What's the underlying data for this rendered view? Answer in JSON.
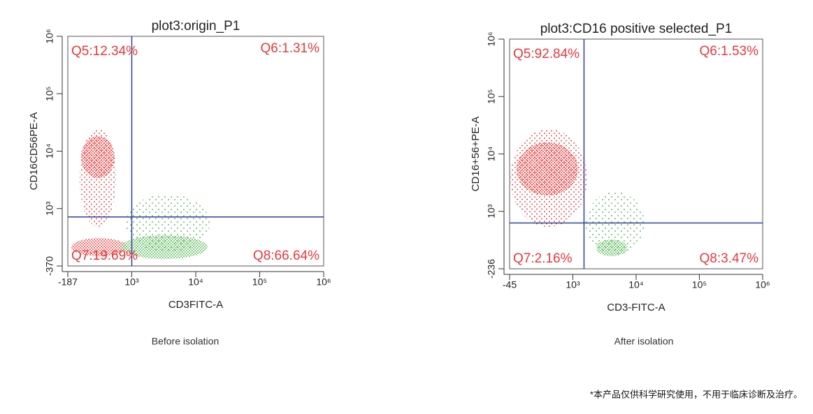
{
  "chart_data": [
    {
      "type": "scatter",
      "title": "plot3:origin_P1",
      "xlabel": "CD3FITC-A",
      "ylabel": "CD16CD56PE-A",
      "xscale": "biexponential",
      "yscale": "biexponential",
      "xlim": [
        -187,
        1000000
      ],
      "ylim": [
        -370,
        1000000
      ],
      "xticks": [
        -187,
        {
          "value": 1000,
          "label": "10³"
        },
        {
          "value": 10000,
          "label": "10⁴"
        },
        {
          "value": 100000,
          "label": "10⁵"
        },
        {
          "value": 1000000,
          "label": "10⁶"
        }
      ],
      "yticks": [
        -370,
        {
          "value": 1000,
          "label": "10³"
        },
        {
          "value": 10000,
          "label": "10⁴"
        },
        {
          "value": 100000,
          "label": "10⁵"
        },
        {
          "value": 1000000,
          "label": "10⁶"
        }
      ],
      "gate": {
        "x": 1000,
        "y": 800,
        "color": "#2e3f9e"
      },
      "quadrant_labels": [
        "Q5:12.34%",
        "Q6:1.31%",
        "Q7:19.69%",
        "Q8:66.64%"
      ],
      "label_color": "#e8383d"
    },
    {
      "type": "scatter",
      "title": "plot3:CD16 positive selected_P1",
      "xlabel": "CD3-FITC-A",
      "ylabel": "CD16+56+PE-A",
      "xscale": "biexponential",
      "yscale": "biexponential",
      "xlim": [
        -45,
        1000000
      ],
      "ylim": [
        -236,
        1000000
      ],
      "xticks": [
        -45,
        {
          "value": 1000,
          "label": "10³"
        },
        {
          "value": 10000,
          "label": "10⁴"
        },
        {
          "value": 100000,
          "label": "10⁵"
        },
        {
          "value": 1000000,
          "label": "10⁶"
        }
      ],
      "yticks": [
        -236,
        {
          "value": 1000,
          "label": "10³"
        },
        {
          "value": 10000,
          "label": "10⁴"
        },
        {
          "value": 100000,
          "label": "10⁵"
        },
        {
          "value": 1000000,
          "label": "10⁶"
        }
      ],
      "gate": {
        "x": 1500,
        "y": 750,
        "color": "#2e3f9e"
      },
      "quadrant_labels": [
        "Q5:92.84%",
        "Q6:1.53%",
        "Q7:2.16%",
        "Q8:3.47%"
      ],
      "label_color": "#e8383d"
    }
  ],
  "captions": [
    "Before isolation",
    "After isolation"
  ],
  "footer": "*本产品仅供科学研究使用，不用于临床诊断及治疗。"
}
